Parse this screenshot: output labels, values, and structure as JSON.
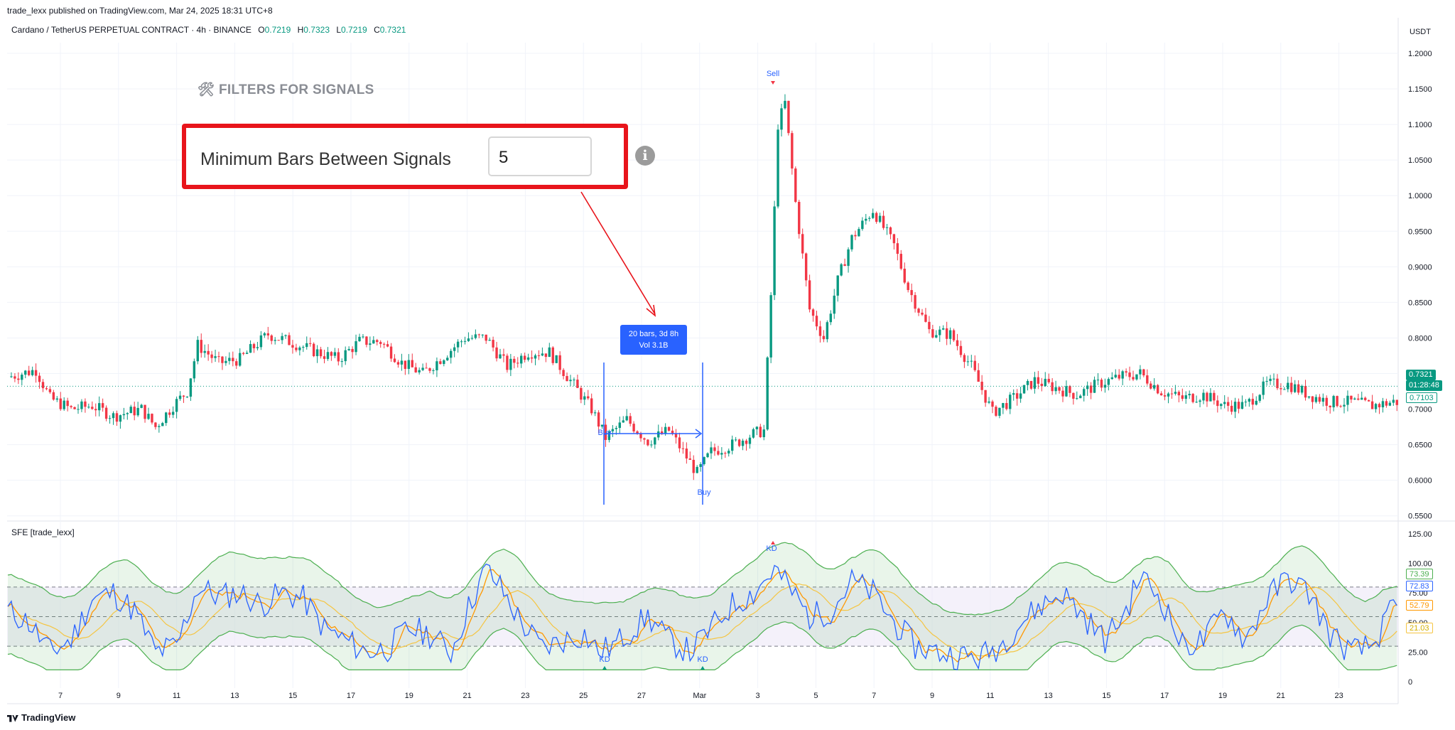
{
  "header": {
    "published": "trade_lexx published on TradingView.com, Mar 24, 2025 18:31 UTC+8",
    "symbol": "Cardano / TetherUS PERPETUAL CONTRACT · 4h · BINANCE",
    "ohlc": [
      {
        "k": "O",
        "v": "0.7219"
      },
      {
        "k": "H",
        "v": "0.7323"
      },
      {
        "k": "L",
        "v": "0.7219"
      },
      {
        "k": "C",
        "v": "0.7321"
      }
    ],
    "currency": "USDT"
  },
  "overlay": {
    "filters_title": "🛠 FILTERS FOR SIGNALS",
    "field_label": "Minimum Bars Between Signals",
    "field_value": "5",
    "info": "i"
  },
  "measure": {
    "line1": "20 bars, 3d 8h",
    "line2": "Vol 3.1B"
  },
  "indicator": {
    "label": "SFE [trade_lexx]"
  },
  "footer": {
    "brand": "TradingView"
  },
  "price_tags": {
    "last": "0.7321",
    "countdown": "01:28:48",
    "level": "0.7103",
    "osc": [
      "73.39",
      "72.83",
      "52.79",
      "21.03"
    ]
  },
  "colors": {
    "up": "#089981",
    "down": "#f23645",
    "blue": "#2962ff",
    "orange": "#ff9800",
    "yellow": "#f5c542",
    "green_band": "#4caf50",
    "red_highlight": "#e8141b"
  },
  "chart_data": [
    {
      "type": "candlestick",
      "title": "Cardano / TetherUS PERPETUAL CONTRACT · 4h · BINANCE",
      "ylim": [
        0.53,
        1.22
      ],
      "y_ticks": [
        "1.2000",
        "1.1500",
        "1.1000",
        "1.0500",
        "1.0000",
        "0.9500",
        "0.9000",
        "0.8500",
        "0.8000",
        "0.7500",
        "0.7000",
        "0.6500",
        "0.6000",
        "0.5500"
      ],
      "x_ticks": [
        "7",
        "9",
        "11",
        "13",
        "15",
        "17",
        "19",
        "21",
        "23",
        "25",
        "27",
        "Mar",
        "3",
        "5",
        "7",
        "9",
        "11",
        "13",
        "15",
        "17",
        "19",
        "21",
        "23"
      ],
      "anchors": [
        [
          0,
          0.745
        ],
        [
          8,
          0.755
        ],
        [
          12,
          0.715
        ],
        [
          18,
          0.7
        ],
        [
          24,
          0.705
        ],
        [
          30,
          0.69
        ],
        [
          38,
          0.7
        ],
        [
          42,
          0.675
        ],
        [
          47,
          0.705
        ],
        [
          51,
          0.725
        ],
        [
          54,
          0.79
        ],
        [
          60,
          0.765
        ],
        [
          66,
          0.77
        ],
        [
          74,
          0.805
        ],
        [
          80,
          0.795
        ],
        [
          88,
          0.78
        ],
        [
          94,
          0.77
        ],
        [
          100,
          0.795
        ],
        [
          106,
          0.795
        ],
        [
          112,
          0.765
        ],
        [
          118,
          0.75
        ],
        [
          124,
          0.775
        ],
        [
          130,
          0.8
        ],
        [
          136,
          0.8
        ],
        [
          142,
          0.76
        ],
        [
          148,
          0.78
        ],
        [
          154,
          0.78
        ],
        [
          160,
          0.74
        ],
        [
          166,
          0.7
        ],
        [
          170,
          0.66
        ],
        [
          176,
          0.685
        ],
        [
          182,
          0.655
        ],
        [
          188,
          0.67
        ],
        [
          192,
          0.64
        ],
        [
          196,
          0.61
        ],
        [
          200,
          0.64
        ],
        [
          206,
          0.65
        ],
        [
          212,
          0.665
        ],
        [
          215,
          0.67
        ],
        [
          217,
          0.86
        ],
        [
          219,
          1.1
        ],
        [
          221,
          1.13
        ],
        [
          224,
          0.99
        ],
        [
          228,
          0.84
        ],
        [
          232,
          0.8
        ],
        [
          236,
          0.88
        ],
        [
          240,
          0.94
        ],
        [
          246,
          0.98
        ],
        [
          252,
          0.93
        ],
        [
          256,
          0.87
        ],
        [
          262,
          0.81
        ],
        [
          268,
          0.805
        ],
        [
          274,
          0.76
        ],
        [
          280,
          0.695
        ],
        [
          286,
          0.715
        ],
        [
          292,
          0.74
        ],
        [
          298,
          0.73
        ],
        [
          304,
          0.72
        ],
        [
          310,
          0.735
        ],
        [
          316,
          0.745
        ],
        [
          322,
          0.75
        ],
        [
          328,
          0.725
        ],
        [
          334,
          0.715
        ],
        [
          340,
          0.72
        ],
        [
          346,
          0.705
        ],
        [
          352,
          0.705
        ],
        [
          358,
          0.735
        ],
        [
          364,
          0.735
        ],
        [
          370,
          0.72
        ],
        [
          376,
          0.71
        ],
        [
          382,
          0.71
        ],
        [
          388,
          0.705
        ],
        [
          394,
          0.71
        ]
      ],
      "annotations": [
        "Sell",
        "Buy",
        "Buy"
      ],
      "horizontal_line": 0.7321
    },
    {
      "type": "line",
      "title": "SFE [trade_lexx]",
      "ylim": [
        0,
        125
      ],
      "y_ticks": [
        "125.00",
        "100.00",
        "75.00",
        "50.00",
        "25.00",
        "0"
      ],
      "levels": [
        80,
        55,
        30
      ],
      "series": [
        {
          "name": "K",
          "color": "#2962ff"
        },
        {
          "name": "D",
          "color": "#ff9800"
        },
        {
          "name": "Signal",
          "color": "#f5c542"
        }
      ],
      "anchors": [
        [
          0,
          60
        ],
        [
          6,
          50
        ],
        [
          12,
          25
        ],
        [
          18,
          35
        ],
        [
          24,
          70
        ],
        [
          30,
          75
        ],
        [
          36,
          60
        ],
        [
          42,
          25
        ],
        [
          48,
          30
        ],
        [
          54,
          80
        ],
        [
          60,
          72
        ],
        [
          66,
          75
        ],
        [
          72,
          65
        ],
        [
          78,
          75
        ],
        [
          84,
          70
        ],
        [
          90,
          45
        ],
        [
          96,
          35
        ],
        [
          102,
          25
        ],
        [
          108,
          28
        ],
        [
          114,
          45
        ],
        [
          120,
          40
        ],
        [
          126,
          25
        ],
        [
          132,
          70
        ],
        [
          136,
          95
        ],
        [
          140,
          80
        ],
        [
          146,
          50
        ],
        [
          152,
          28
        ],
        [
          158,
          35
        ],
        [
          164,
          40
        ],
        [
          168,
          25
        ],
        [
          172,
          30
        ],
        [
          176,
          40
        ],
        [
          182,
          55
        ],
        [
          188,
          35
        ],
        [
          194,
          25
        ],
        [
          200,
          45
        ],
        [
          206,
          65
        ],
        [
          212,
          75
        ],
        [
          218,
          95
        ],
        [
          222,
          80
        ],
        [
          228,
          55
        ],
        [
          234,
          60
        ],
        [
          240,
          85
        ],
        [
          246,
          75
        ],
        [
          252,
          50
        ],
        [
          258,
          30
        ],
        [
          264,
          25
        ],
        [
          270,
          22
        ],
        [
          276,
          20
        ],
        [
          282,
          30
        ],
        [
          288,
          50
        ],
        [
          294,
          65
        ],
        [
          300,
          75
        ],
        [
          306,
          55
        ],
        [
          312,
          35
        ],
        [
          318,
          60
        ],
        [
          322,
          90
        ],
        [
          328,
          70
        ],
        [
          334,
          30
        ],
        [
          340,
          35
        ],
        [
          346,
          60
        ],
        [
          352,
          35
        ],
        [
          358,
          70
        ],
        [
          364,
          88
        ],
        [
          370,
          75
        ],
        [
          376,
          40
        ],
        [
          382,
          25
        ],
        [
          388,
          30
        ],
        [
          394,
          62
        ]
      ],
      "signal_labels": [
        "KD",
        "KD",
        "KD"
      ]
    }
  ]
}
